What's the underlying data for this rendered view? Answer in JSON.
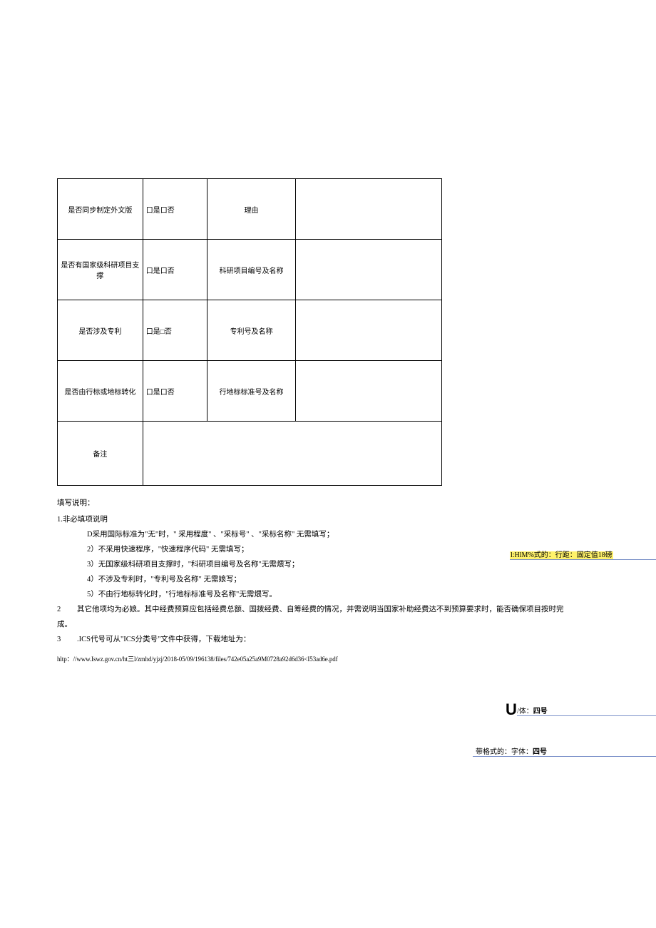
{
  "table": {
    "rows": [
      {
        "label": "是否同步制定外文版",
        "choice": "口是口否",
        "field": "理由",
        "value": ""
      },
      {
        "label": "是否有国家级科研项目支撑",
        "choice": "口是口否",
        "field": "科研项目编号及名称",
        "value": ""
      },
      {
        "label": "是否涉及专利",
        "choice": "口是□否",
        "field": "专利号及名称",
        "value": ""
      },
      {
        "label": "是否由行标或地标转化",
        "choice": "口是口否",
        "field": "行地标标准号及名称",
        "value": ""
      }
    ],
    "remark_label": "备注",
    "remark_value": ""
  },
  "instructions": {
    "heading": "填写说明：",
    "section1_title": "1.非必填项说明",
    "items1": [
      "D采用国际标准为\"无\"时，\" 采用程度\" 、\"采标号\" 、\"采标名称\" 无需填写；",
      "2）不采用快速程序，\"快速程序代码\" 无需填写；",
      "3）无国家级科研项目支撑时，\"科研项目编号及名称\"无需煨写；",
      "4）不涉及专利时，\"专利号及名称\" 无需娘写；",
      "5）不由行地标转化时，\"行地标标准号及名称\"无需煨写。"
    ],
    "item2": {
      "num": "2",
      "text": "其它他项均为必娘。其中经费预算应包括经费总额、国拨经费、自筹经费的情况，并需说明当国家补助经费达不到预算要求时，能否确保项目按时完成。"
    },
    "item3": {
      "num": "3",
      "text": ".ICS代号可从\"ICS分类号\"文件中获得，下载地址为："
    },
    "url": "hltp：//www.Iswz.gov.cn/ht三l/zmhd/yjzj/2018-05/09/196138/files/742e05a25a9M0728a92d6d36<I53ad6e.pdf"
  },
  "revisions": {
    "r1": "l:HlM%式的：行距：固定值18磅",
    "r2_strike": "U",
    "r2_text": "/体：",
    "r2_bold": "四号",
    "r3_prefix": "带格式的：字体：",
    "r3_bold": "四号"
  },
  "colors": {
    "underline": "#7a90c8",
    "highlight": "#fff26b",
    "text": "#000000",
    "bg": "#ffffff"
  },
  "fonts": {
    "body_size_pt": 10.5,
    "table_size_pt": 10,
    "url_size_pt": 9,
    "revision_size_pt": 10
  }
}
